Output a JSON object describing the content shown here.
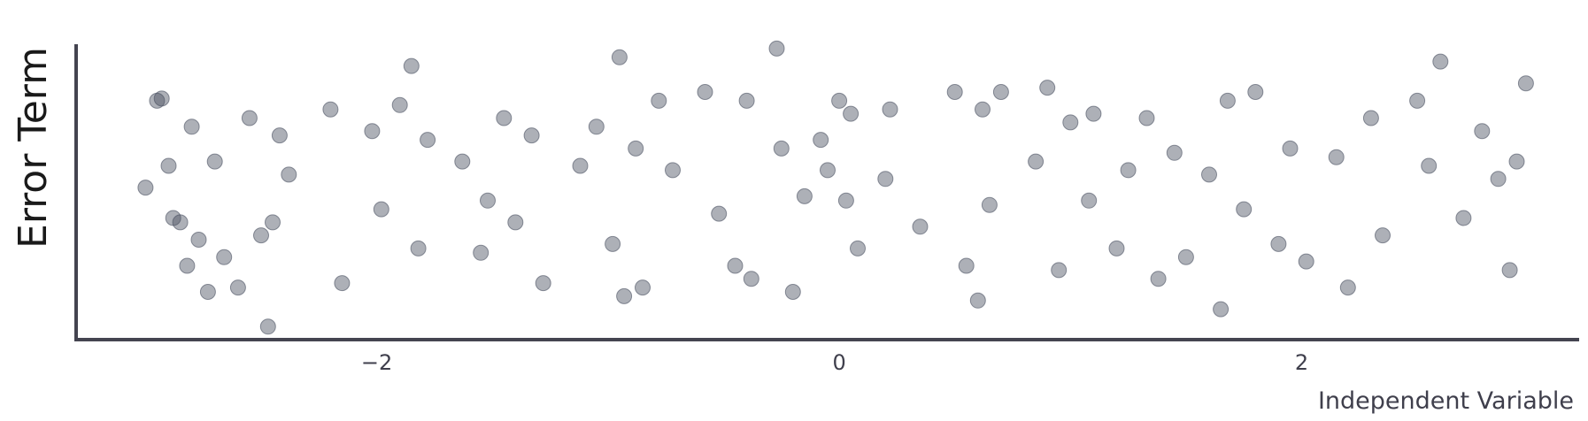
{
  "chart_data": {
    "type": "scatter",
    "title": "",
    "xlabel": "Independent Variable",
    "ylabel": "Error Term",
    "xlim": [
      -3.3,
      3.2
    ],
    "ylim": [
      -3.5,
      3.3
    ],
    "x_ticks": [
      -2,
      0,
      2
    ],
    "x_tick_labels": [
      "−2",
      "0",
      "2"
    ],
    "y_ticks_shown": false,
    "grid": false,
    "legend": "none",
    "point_color": "#4a5060",
    "point_opacity": 0.45,
    "axis_color": "#444450",
    "n_points": 1000,
    "series": [
      {
        "x": [
          -3.0,
          -2.95,
          -2.93,
          -2.9,
          -2.88,
          -2.85,
          -2.82,
          -2.8,
          -2.77,
          -2.73,
          -2.7,
          -2.66,
          -2.6,
          -2.55,
          -2.5,
          -2.47,
          -2.45,
          -2.42,
          -2.38,
          -2.2,
          -2.15,
          -2.02,
          -1.98,
          -1.9,
          -1.85,
          -1.82,
          -1.78,
          -1.63,
          -1.55,
          -1.52,
          -1.45,
          -1.4,
          -1.33,
          -1.28,
          -1.12,
          -1.05,
          -0.98,
          -0.95,
          -0.93,
          -0.88,
          -0.85,
          -0.78,
          -0.72,
          -0.58,
          -0.52,
          -0.45,
          -0.4,
          -0.38,
          -0.27,
          -0.25,
          -0.2,
          -0.15,
          -0.08,
          -0.05,
          0.0,
          0.03,
          0.05,
          0.08,
          0.2,
          0.22,
          0.35,
          0.5,
          0.55,
          0.6,
          0.62,
          0.65,
          0.7,
          0.85,
          0.9,
          0.95,
          1.0,
          1.08,
          1.1,
          1.2,
          1.25,
          1.33,
          1.38,
          1.45,
          1.5,
          1.6,
          1.65,
          1.68,
          1.75,
          1.8,
          1.9,
          1.95,
          2.02,
          2.15,
          2.2,
          2.3,
          2.35,
          2.5,
          2.55,
          2.6,
          2.7,
          2.78,
          2.85,
          2.9,
          2.93,
          2.97
        ],
        "y": [
          0.0,
          2.0,
          2.05,
          0.5,
          -0.7,
          -0.8,
          -1.8,
          1.4,
          -1.2,
          -2.4,
          0.6,
          -1.6,
          -2.3,
          1.6,
          -1.1,
          -3.2,
          -0.8,
          1.2,
          0.3,
          1.8,
          -2.2,
          1.3,
          -0.5,
          1.9,
          2.8,
          -1.4,
          1.1,
          0.6,
          -1.5,
          -0.3,
          1.6,
          -0.8,
          1.2,
          -2.2,
          0.5,
          1.4,
          -1.3,
          3.0,
          -2.5,
          0.9,
          -2.3,
          2.0,
          0.4,
          2.2,
          -0.6,
          -1.8,
          2.0,
          -2.1,
          3.2,
          0.9,
          -2.4,
          -0.2,
          1.1,
          0.4,
          2.0,
          -0.3,
          1.7,
          -1.4,
          0.2,
          1.8,
          -0.9,
          2.2,
          -1.8,
          -2.6,
          1.8,
          -0.4,
          2.2,
          0.6,
          2.3,
          -1.9,
          1.5,
          -0.3,
          1.7,
          -1.4,
          0.4,
          1.6,
          -2.1,
          0.8,
          -1.6,
          0.3,
          -2.8,
          2.0,
          -0.5,
          2.2,
          -1.3,
          0.9,
          -1.7,
          0.7,
          -2.3,
          1.6,
          -1.1,
          2.0,
          0.5,
          2.9,
          -0.7,
          1.3,
          0.2,
          -1.9,
          0.6,
          2.4
        ]
      }
    ]
  }
}
